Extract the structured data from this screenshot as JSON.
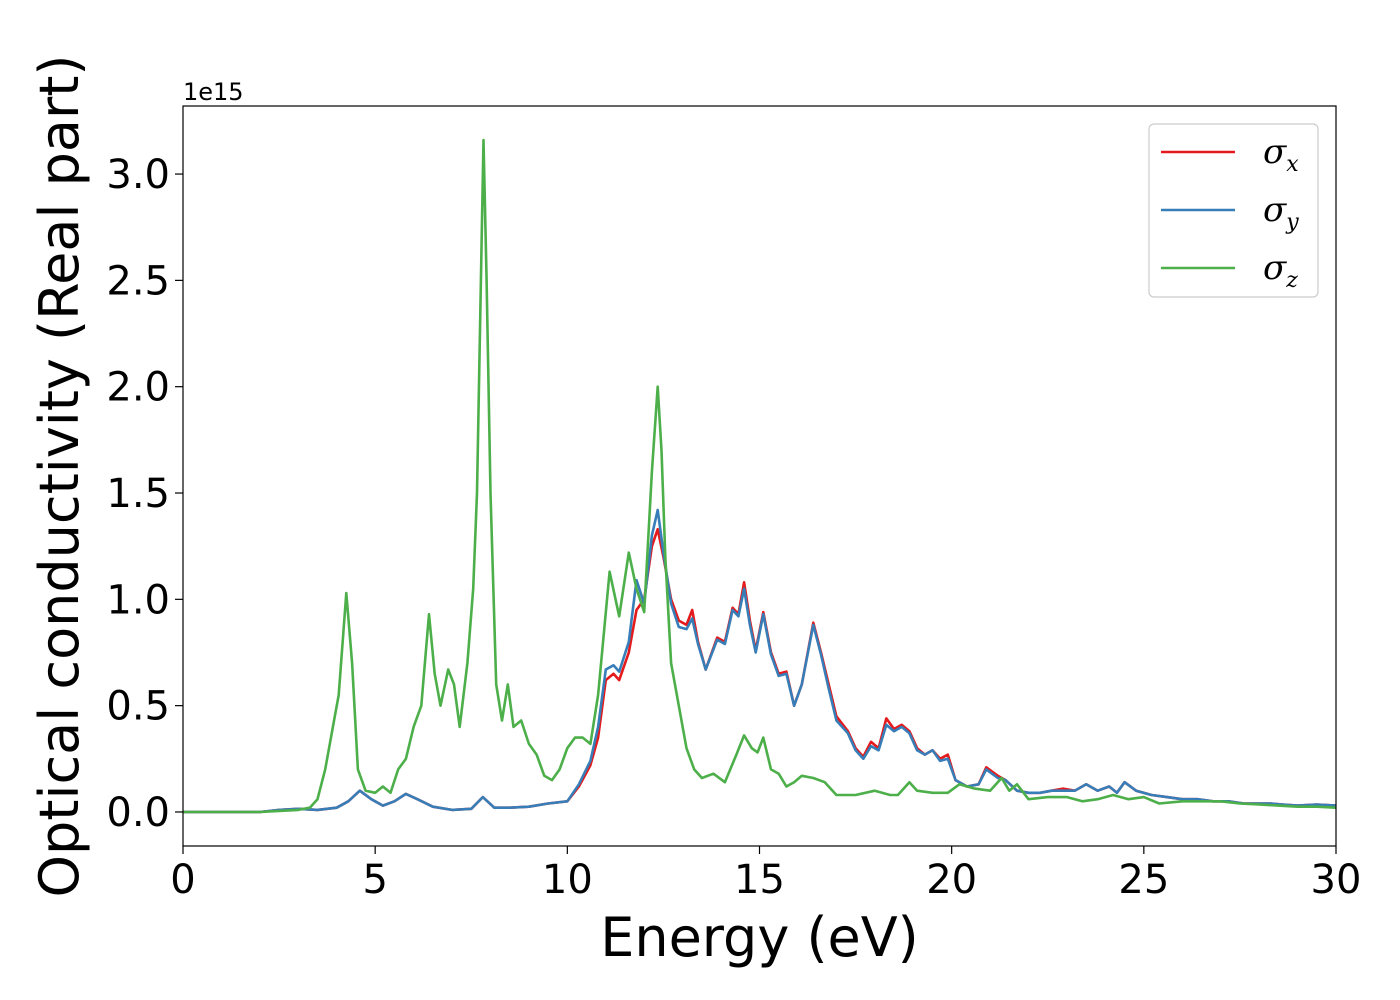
{
  "chart_data": {
    "type": "line",
    "title": "",
    "xlabel": "Energy (eV)",
    "ylabel": "Optical conductivity (Real part)",
    "y_offset_label": "1e15",
    "xlim": [
      0,
      30
    ],
    "ylim": [
      -0.16,
      3.32
    ],
    "x_ticks": [
      0,
      5,
      10,
      15,
      20,
      25,
      30
    ],
    "x_tick_labels": [
      "0",
      "5",
      "10",
      "15",
      "20",
      "25",
      "30"
    ],
    "y_ticks": [
      0.0,
      0.5,
      1.0,
      1.5,
      2.0,
      2.5,
      3.0
    ],
    "y_tick_labels": [
      "0.0",
      "0.5",
      "1.0",
      "1.5",
      "2.0",
      "2.5",
      "3.0"
    ],
    "grid": false,
    "legend_position": "top-right",
    "series": [
      {
        "name": "σx",
        "color": "#e41a1c",
        "points": [
          [
            0,
            0
          ],
          [
            2,
            0
          ],
          [
            2.5,
            0.01
          ],
          [
            3,
            0.015
          ],
          [
            3.5,
            0.01
          ],
          [
            4,
            0.02
          ],
          [
            4.3,
            0.05
          ],
          [
            4.6,
            0.1
          ],
          [
            4.9,
            0.06
          ],
          [
            5.2,
            0.03
          ],
          [
            5.5,
            0.05
          ],
          [
            5.8,
            0.085
          ],
          [
            6.1,
            0.06
          ],
          [
            6.5,
            0.025
          ],
          [
            7,
            0.01
          ],
          [
            7.5,
            0.015
          ],
          [
            7.8,
            0.07
          ],
          [
            8.1,
            0.02
          ],
          [
            8.5,
            0.02
          ],
          [
            9,
            0.025
          ],
          [
            9.5,
            0.04
          ],
          [
            10,
            0.05
          ],
          [
            10.3,
            0.12
          ],
          [
            10.6,
            0.22
          ],
          [
            10.8,
            0.35
          ],
          [
            11,
            0.62
          ],
          [
            11.2,
            0.65
          ],
          [
            11.35,
            0.62
          ],
          [
            11.6,
            0.75
          ],
          [
            11.8,
            0.95
          ],
          [
            12,
            1.0
          ],
          [
            12.2,
            1.25
          ],
          [
            12.35,
            1.33
          ],
          [
            12.5,
            1.2
          ],
          [
            12.7,
            1.0
          ],
          [
            12.9,
            0.9
          ],
          [
            13.1,
            0.88
          ],
          [
            13.25,
            0.95
          ],
          [
            13.4,
            0.8
          ],
          [
            13.6,
            0.67
          ],
          [
            13.9,
            0.82
          ],
          [
            14.1,
            0.8
          ],
          [
            14.3,
            0.96
          ],
          [
            14.45,
            0.93
          ],
          [
            14.6,
            1.08
          ],
          [
            14.75,
            0.9
          ],
          [
            14.9,
            0.76
          ],
          [
            15.1,
            0.94
          ],
          [
            15.3,
            0.75
          ],
          [
            15.5,
            0.65
          ],
          [
            15.7,
            0.66
          ],
          [
            15.9,
            0.5
          ],
          [
            16.1,
            0.6
          ],
          [
            16.4,
            0.89
          ],
          [
            16.6,
            0.75
          ],
          [
            16.8,
            0.6
          ],
          [
            17,
            0.45
          ],
          [
            17.3,
            0.38
          ],
          [
            17.5,
            0.3
          ],
          [
            17.7,
            0.26
          ],
          [
            17.9,
            0.33
          ],
          [
            18.1,
            0.3
          ],
          [
            18.3,
            0.44
          ],
          [
            18.5,
            0.39
          ],
          [
            18.7,
            0.41
          ],
          [
            18.9,
            0.38
          ],
          [
            19.1,
            0.3
          ],
          [
            19.3,
            0.27
          ],
          [
            19.5,
            0.29
          ],
          [
            19.7,
            0.25
          ],
          [
            19.9,
            0.27
          ],
          [
            20.1,
            0.15
          ],
          [
            20.4,
            0.12
          ],
          [
            20.7,
            0.13
          ],
          [
            20.9,
            0.21
          ],
          [
            21.2,
            0.17
          ],
          [
            21.4,
            0.15
          ],
          [
            21.7,
            0.1
          ],
          [
            22,
            0.09
          ],
          [
            22.3,
            0.09
          ],
          [
            22.6,
            0.1
          ],
          [
            22.9,
            0.11
          ],
          [
            23.2,
            0.1
          ],
          [
            23.5,
            0.13
          ],
          [
            23.8,
            0.1
          ],
          [
            24.1,
            0.12
          ],
          [
            24.3,
            0.09
          ],
          [
            24.5,
            0.14
          ],
          [
            24.8,
            0.1
          ],
          [
            25.2,
            0.08
          ],
          [
            25.6,
            0.07
          ],
          [
            26,
            0.06
          ],
          [
            26.4,
            0.06
          ],
          [
            26.8,
            0.05
          ],
          [
            27.2,
            0.05
          ],
          [
            27.6,
            0.04
          ],
          [
            28,
            0.04
          ],
          [
            28.3,
            0.04
          ],
          [
            28.6,
            0.035
          ],
          [
            29,
            0.03
          ],
          [
            29.5,
            0.035
          ],
          [
            30,
            0.03
          ]
        ]
      },
      {
        "name": "σy",
        "color": "#377eb8",
        "points": [
          [
            0,
            0
          ],
          [
            2,
            0
          ],
          [
            2.5,
            0.01
          ],
          [
            3,
            0.015
          ],
          [
            3.5,
            0.01
          ],
          [
            4,
            0.02
          ],
          [
            4.3,
            0.05
          ],
          [
            4.6,
            0.1
          ],
          [
            4.9,
            0.06
          ],
          [
            5.2,
            0.03
          ],
          [
            5.5,
            0.05
          ],
          [
            5.8,
            0.085
          ],
          [
            6.1,
            0.06
          ],
          [
            6.5,
            0.025
          ],
          [
            7,
            0.01
          ],
          [
            7.5,
            0.015
          ],
          [
            7.8,
            0.07
          ],
          [
            8.1,
            0.02
          ],
          [
            8.5,
            0.02
          ],
          [
            9,
            0.025
          ],
          [
            9.5,
            0.04
          ],
          [
            10,
            0.05
          ],
          [
            10.3,
            0.13
          ],
          [
            10.6,
            0.24
          ],
          [
            10.8,
            0.4
          ],
          [
            11,
            0.67
          ],
          [
            11.2,
            0.69
          ],
          [
            11.35,
            0.66
          ],
          [
            11.6,
            0.8
          ],
          [
            11.8,
            1.09
          ],
          [
            12,
            0.98
          ],
          [
            12.2,
            1.3
          ],
          [
            12.35,
            1.42
          ],
          [
            12.5,
            1.22
          ],
          [
            12.7,
            0.98
          ],
          [
            12.9,
            0.87
          ],
          [
            13.1,
            0.86
          ],
          [
            13.25,
            0.91
          ],
          [
            13.4,
            0.79
          ],
          [
            13.6,
            0.67
          ],
          [
            13.9,
            0.81
          ],
          [
            14.1,
            0.79
          ],
          [
            14.3,
            0.95
          ],
          [
            14.45,
            0.92
          ],
          [
            14.6,
            1.05
          ],
          [
            14.75,
            0.88
          ],
          [
            14.9,
            0.75
          ],
          [
            15.1,
            0.93
          ],
          [
            15.3,
            0.74
          ],
          [
            15.5,
            0.64
          ],
          [
            15.7,
            0.65
          ],
          [
            15.9,
            0.5
          ],
          [
            16.1,
            0.6
          ],
          [
            16.4,
            0.88
          ],
          [
            16.6,
            0.74
          ],
          [
            16.8,
            0.58
          ],
          [
            17,
            0.43
          ],
          [
            17.3,
            0.37
          ],
          [
            17.5,
            0.29
          ],
          [
            17.7,
            0.25
          ],
          [
            17.9,
            0.31
          ],
          [
            18.1,
            0.29
          ],
          [
            18.3,
            0.41
          ],
          [
            18.5,
            0.38
          ],
          [
            18.7,
            0.4
          ],
          [
            18.9,
            0.37
          ],
          [
            19.1,
            0.29
          ],
          [
            19.3,
            0.27
          ],
          [
            19.5,
            0.29
          ],
          [
            19.7,
            0.24
          ],
          [
            19.9,
            0.25
          ],
          [
            20.1,
            0.15
          ],
          [
            20.4,
            0.12
          ],
          [
            20.7,
            0.13
          ],
          [
            20.9,
            0.2
          ],
          [
            21.2,
            0.16
          ],
          [
            21.4,
            0.15
          ],
          [
            21.7,
            0.1
          ],
          [
            22,
            0.09
          ],
          [
            22.3,
            0.09
          ],
          [
            22.6,
            0.1
          ],
          [
            22.9,
            0.1
          ],
          [
            23.2,
            0.1
          ],
          [
            23.5,
            0.13
          ],
          [
            23.8,
            0.1
          ],
          [
            24.1,
            0.12
          ],
          [
            24.3,
            0.09
          ],
          [
            24.5,
            0.14
          ],
          [
            24.8,
            0.1
          ],
          [
            25.2,
            0.08
          ],
          [
            25.6,
            0.07
          ],
          [
            26,
            0.06
          ],
          [
            26.4,
            0.06
          ],
          [
            26.8,
            0.05
          ],
          [
            27.2,
            0.05
          ],
          [
            27.6,
            0.04
          ],
          [
            28,
            0.04
          ],
          [
            28.3,
            0.04
          ],
          [
            28.6,
            0.035
          ],
          [
            29,
            0.03
          ],
          [
            29.5,
            0.035
          ],
          [
            30,
            0.03
          ]
        ]
      },
      {
        "name": "σz",
        "color": "#4daf4a",
        "points": [
          [
            0,
            0
          ],
          [
            2,
            0
          ],
          [
            2.5,
            0.005
          ],
          [
            3,
            0.01
          ],
          [
            3.3,
            0.02
          ],
          [
            3.5,
            0.06
          ],
          [
            3.7,
            0.2
          ],
          [
            3.9,
            0.4
          ],
          [
            4.05,
            0.55
          ],
          [
            4.25,
            1.03
          ],
          [
            4.4,
            0.7
          ],
          [
            4.55,
            0.2
          ],
          [
            4.75,
            0.1
          ],
          [
            5,
            0.09
          ],
          [
            5.2,
            0.12
          ],
          [
            5.4,
            0.09
          ],
          [
            5.6,
            0.2
          ],
          [
            5.8,
            0.25
          ],
          [
            6,
            0.4
          ],
          [
            6.2,
            0.5
          ],
          [
            6.4,
            0.93
          ],
          [
            6.55,
            0.65
          ],
          [
            6.7,
            0.5
          ],
          [
            6.9,
            0.67
          ],
          [
            7.05,
            0.6
          ],
          [
            7.2,
            0.4
          ],
          [
            7.4,
            0.7
          ],
          [
            7.55,
            1.05
          ],
          [
            7.65,
            1.5
          ],
          [
            7.75,
            2.5
          ],
          [
            7.82,
            3.16
          ],
          [
            7.9,
            2.5
          ],
          [
            8,
            1.5
          ],
          [
            8.15,
            0.6
          ],
          [
            8.3,
            0.43
          ],
          [
            8.45,
            0.6
          ],
          [
            8.6,
            0.4
          ],
          [
            8.8,
            0.43
          ],
          [
            9,
            0.32
          ],
          [
            9.2,
            0.27
          ],
          [
            9.4,
            0.17
          ],
          [
            9.6,
            0.15
          ],
          [
            9.8,
            0.2
          ],
          [
            10,
            0.3
          ],
          [
            10.2,
            0.35
          ],
          [
            10.4,
            0.35
          ],
          [
            10.6,
            0.32
          ],
          [
            10.8,
            0.55
          ],
          [
            11.1,
            1.13
          ],
          [
            11.35,
            0.92
          ],
          [
            11.6,
            1.22
          ],
          [
            11.8,
            1.05
          ],
          [
            12,
            0.94
          ],
          [
            12.2,
            1.6
          ],
          [
            12.35,
            2.0
          ],
          [
            12.45,
            1.7
          ],
          [
            12.55,
            1.2
          ],
          [
            12.7,
            0.7
          ],
          [
            12.9,
            0.5
          ],
          [
            13.1,
            0.3
          ],
          [
            13.3,
            0.2
          ],
          [
            13.5,
            0.16
          ],
          [
            13.8,
            0.18
          ],
          [
            14.1,
            0.14
          ],
          [
            14.4,
            0.27
          ],
          [
            14.6,
            0.36
          ],
          [
            14.8,
            0.3
          ],
          [
            14.95,
            0.28
          ],
          [
            15.1,
            0.35
          ],
          [
            15.3,
            0.2
          ],
          [
            15.5,
            0.18
          ],
          [
            15.7,
            0.12
          ],
          [
            15.9,
            0.14
          ],
          [
            16.1,
            0.17
          ],
          [
            16.4,
            0.16
          ],
          [
            16.7,
            0.14
          ],
          [
            17,
            0.08
          ],
          [
            17.5,
            0.08
          ],
          [
            18,
            0.1
          ],
          [
            18.4,
            0.08
          ],
          [
            18.6,
            0.08
          ],
          [
            18.9,
            0.14
          ],
          [
            19.1,
            0.1
          ],
          [
            19.5,
            0.09
          ],
          [
            19.9,
            0.09
          ],
          [
            20.2,
            0.13
          ],
          [
            20.6,
            0.11
          ],
          [
            21,
            0.1
          ],
          [
            21.3,
            0.16
          ],
          [
            21.5,
            0.1
          ],
          [
            21.7,
            0.13
          ],
          [
            22,
            0.06
          ],
          [
            22.5,
            0.07
          ],
          [
            23,
            0.07
          ],
          [
            23.4,
            0.05
          ],
          [
            23.8,
            0.06
          ],
          [
            24.2,
            0.08
          ],
          [
            24.6,
            0.06
          ],
          [
            25,
            0.07
          ],
          [
            25.4,
            0.04
          ],
          [
            26,
            0.05
          ],
          [
            26.6,
            0.05
          ],
          [
            27,
            0.05
          ],
          [
            27.5,
            0.04
          ],
          [
            28,
            0.035
          ],
          [
            28.5,
            0.03
          ],
          [
            29,
            0.025
          ],
          [
            29.5,
            0.025
          ],
          [
            30,
            0.02
          ]
        ]
      }
    ]
  }
}
